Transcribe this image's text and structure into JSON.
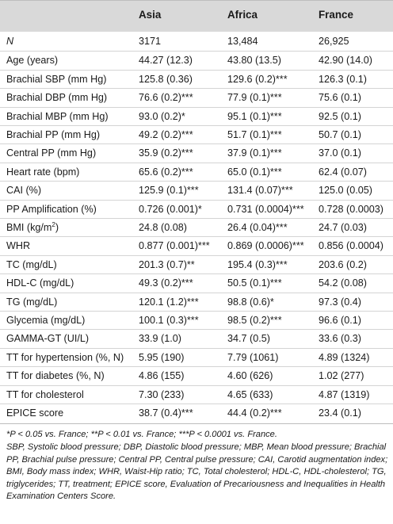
{
  "table": {
    "columns": [
      "",
      "Asia",
      "Africa",
      "France"
    ],
    "rows": [
      {
        "label": "N",
        "italic": true,
        "asia": "3171",
        "africa": "13,484",
        "france": "26,925"
      },
      {
        "label": "Age (years)",
        "asia": "44.27 (12.3)",
        "africa": "43.80 (13.5)",
        "france": "42.90 (14.0)"
      },
      {
        "label": "Brachial SBP (mm Hg)",
        "asia": "125.8 (0.36)",
        "africa": "129.6 (0.2)***",
        "france": "126.3 (0.1)"
      },
      {
        "label": "Brachial DBP (mm Hg)",
        "asia": "76.6 (0.2)***",
        "africa": "77.9 (0.1)***",
        "france": "75.6 (0.1)"
      },
      {
        "label": "Brachial MBP (mm Hg)",
        "asia": "93.0 (0.2)*",
        "africa": "95.1 (0.1)***",
        "france": "92.5 (0.1)"
      },
      {
        "label": "Brachial PP (mm Hg)",
        "asia": "49.2 (0.2)***",
        "africa": "51.7 (0.1)***",
        "france": "50.7 (0.1)"
      },
      {
        "label": "Central PP (mm Hg)",
        "asia": "35.9 (0.2)***",
        "africa": "37.9 (0.1)***",
        "france": "37.0 (0.1)"
      },
      {
        "label": "Heart rate (bpm)",
        "asia": "65.6 (0.2)***",
        "africa": "65.0 (0.1)***",
        "france": "62.4 (0.07)"
      },
      {
        "label": "CAI (%)",
        "asia": "125.9 (0.1)***",
        "africa": "131.4 (0.07)***",
        "france": "125.0 (0.05)"
      },
      {
        "label": "PP Amplification (%)",
        "asia": "0.726 (0.001)*",
        "africa": "0.731 (0.0004)***",
        "france": "0.728 (0.0003)"
      },
      {
        "label": "BMI (kg/m",
        "label_sup": "2",
        "label_tail": ")",
        "asia": "24.8 (0.08)",
        "africa": "26.4 (0.04)***",
        "france": "24.7 (0.03)"
      },
      {
        "label": "WHR",
        "asia": "0.877 (0.001)***",
        "africa": "0.869 (0.0006)***",
        "france": "0.856 (0.0004)"
      },
      {
        "label": "TC (mg/dL)",
        "asia": "201.3 (0.7)**",
        "africa": "195.4 (0.3)***",
        "france": "203.6 (0.2)"
      },
      {
        "label": "HDL-C (mg/dL)",
        "asia": "49.3 (0.2)***",
        "africa": "50.5 (0.1)***",
        "france": "54.2 (0.08)"
      },
      {
        "label": "TG (mg/dL)",
        "asia": "120.1 (1.2)***",
        "africa": "98.8 (0.6)*",
        "france": "97.3 (0.4)"
      },
      {
        "label": "Glycemia (mg/dL)",
        "asia": "100.1 (0.3)***",
        "africa": "98.5 (0.2)***",
        "france": "96.6 (0.1)"
      },
      {
        "label": "GAMMA-GT (UI/L)",
        "asia": "33.9 (1.0)",
        "africa": "34.7 (0.5)",
        "france": "33.6 (0.3)"
      },
      {
        "label": "TT for hypertension (%, N)",
        "asia": "5.95 (190)",
        "africa": "7.79 (1061)",
        "france": "4.89 (1324)"
      },
      {
        "label": "TT for diabetes (%, N)",
        "asia": "4.86 (155)",
        "africa": "4.60 (626)",
        "france": "1.02 (277)"
      },
      {
        "label": "TT for cholesterol",
        "asia": "7.30 (233)",
        "africa": "4.65 (633)",
        "france": "4.87 (1319)"
      },
      {
        "label": "EPICE score",
        "asia": "38.7 (0.4)***",
        "africa": "44.4 (0.2)***",
        "france": "23.4 (0.1)"
      }
    ]
  },
  "footnotes": {
    "significance": "*P < 0.05 vs. France; **P < 0.01 vs. France; ***P < 0.0001 vs. France.",
    "abbreviations": "SBP, Systolic blood pressure; DBP, Diastolic blood pressure; MBP, Mean blood pressure; Brachial PP, Brachial pulse pressure; Central PP, Central pulse pressure; CAI, Carotid augmentation index; BMI, Body mass index; WHR, Waist-Hip ratio; TC, Total cholesterol; HDL-C, HDL-cholesterol; TG, triglycerides; TT, treatment; EPICE score, Evaluation of Precariousness and Inequalities in Health Examination Centers Score."
  }
}
